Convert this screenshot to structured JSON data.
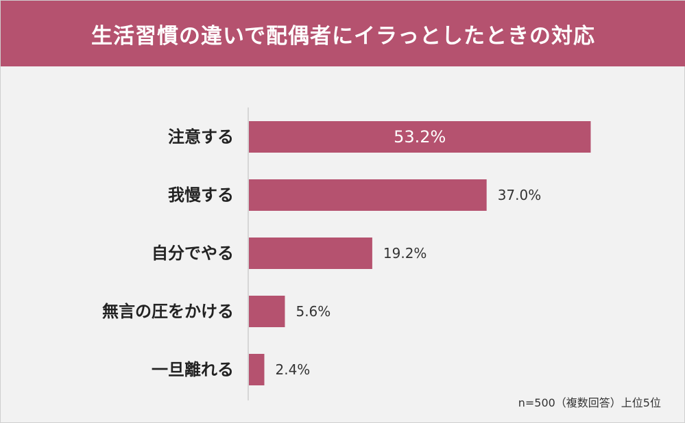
{
  "chart_data": {
    "type": "bar",
    "orientation": "horizontal",
    "title": "生活習慣の違いで配偶者にイラっとしたときの対応",
    "categories": [
      "注意する",
      "我慢する",
      "自分でやる",
      "無言の圧をかける",
      "一旦離れる"
    ],
    "values": [
      53.2,
      37.0,
      19.2,
      5.6,
      2.4
    ],
    "value_labels": [
      "53.2%",
      "37.0%",
      "19.2%",
      "5.6%",
      "2.4%"
    ],
    "unit": "%",
    "xlim": [
      0,
      100
    ],
    "grid": false,
    "legend": "none",
    "bar_color": "#b5526f",
    "note": "n=500（複数回答）上位5位"
  },
  "colors": {
    "header_bg": "#b5526f",
    "page_bg": "#f2f2f2",
    "axis_line": "#cccccc"
  }
}
